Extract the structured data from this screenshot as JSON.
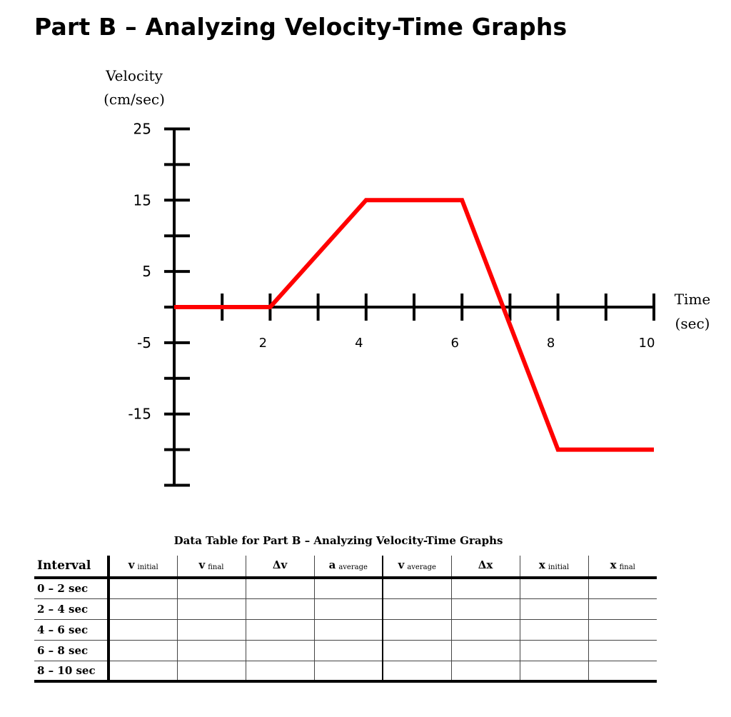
{
  "page_title": "Part B – Analyzing Velocity-Time Graphs",
  "colors": {
    "graph_line": "#ff0000",
    "axis": "#000000"
  },
  "chart_data": {
    "type": "line",
    "title": "",
    "ylabel_line1": "Velocity",
    "ylabel_line2": "(cm/sec)",
    "xlabel_line1": "Time",
    "xlabel_line2": "(sec)",
    "x_ticks": [
      2,
      4,
      6,
      8,
      10
    ],
    "x_tick_labels": [
      "2",
      "4",
      "6",
      "8",
      "10"
    ],
    "x_minor_ticks": [
      1,
      2,
      3,
      4,
      5,
      6,
      7,
      8,
      9,
      10
    ],
    "y_ticks": [
      25,
      15,
      5,
      -5,
      -15
    ],
    "y_tick_labels": [
      "25",
      "15",
      "5",
      "-5",
      "-15"
    ],
    "y_minor_ticks": [
      25,
      20,
      15,
      10,
      5,
      0,
      -5,
      -10,
      -15,
      -20,
      -25
    ],
    "xlim": [
      0,
      10
    ],
    "ylim": [
      -25,
      25
    ],
    "grid": false,
    "series": [
      {
        "x": [
          0,
          2,
          4,
          6,
          8,
          10
        ],
        "y": [
          0,
          0,
          15,
          15,
          -20,
          -20
        ]
      }
    ]
  },
  "table": {
    "title": "Data Table for Part B – Analyzing Velocity-Time Graphs",
    "columns": [
      {
        "main": "Interval",
        "sub": ""
      },
      {
        "main": "v",
        "sub": "initial"
      },
      {
        "main": "v",
        "sub": "final"
      },
      {
        "main": "Δv",
        "sub": ""
      },
      {
        "main": "a",
        "sub": "average"
      },
      {
        "main": "v",
        "sub": "average"
      },
      {
        "main": "Δx",
        "sub": ""
      },
      {
        "main": "x",
        "sub": "initial"
      },
      {
        "main": "x",
        "sub": "final"
      }
    ],
    "rows": [
      {
        "interval": "0 – 2 sec",
        "cells": [
          "",
          "",
          "",
          "",
          "",
          "",
          "",
          ""
        ]
      },
      {
        "interval": "2 – 4 sec",
        "cells": [
          "",
          "",
          "",
          "",
          "",
          "",
          "",
          ""
        ]
      },
      {
        "interval": "4 – 6 sec",
        "cells": [
          "",
          "",
          "",
          "",
          "",
          "",
          "",
          ""
        ]
      },
      {
        "interval": "6 – 8 sec",
        "cells": [
          "",
          "",
          "",
          "",
          "",
          "",
          "",
          ""
        ]
      },
      {
        "interval": "8 – 10 sec",
        "cells": [
          "",
          "",
          "",
          "",
          "",
          "",
          "",
          ""
        ]
      }
    ]
  }
}
